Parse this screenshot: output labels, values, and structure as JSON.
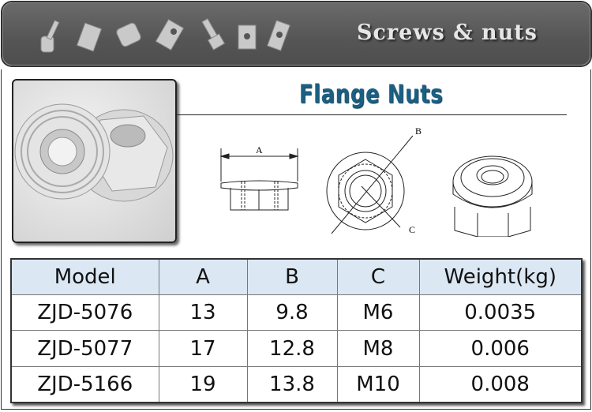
{
  "banner": {
    "title": "Screws & nuts"
  },
  "product": {
    "title": "Flange Nuts",
    "dimension_labels": {
      "a": "A",
      "b": "B",
      "c": "C"
    }
  },
  "table": {
    "headers": [
      "Model",
      "A",
      "B",
      "C",
      "Weight(kg)"
    ],
    "rows": [
      [
        "ZJD-5076",
        "13",
        "9.8",
        "M6",
        "0.0035"
      ],
      [
        "ZJD-5077",
        "17",
        "12.8",
        "M8",
        "0.006"
      ],
      [
        "ZJD-5166",
        "19",
        "13.8",
        "M10",
        "0.008"
      ]
    ]
  },
  "colors": {
    "title": "#1b5f82",
    "header_bg": "#dbe7f3",
    "banner": "#5a5a5a"
  }
}
